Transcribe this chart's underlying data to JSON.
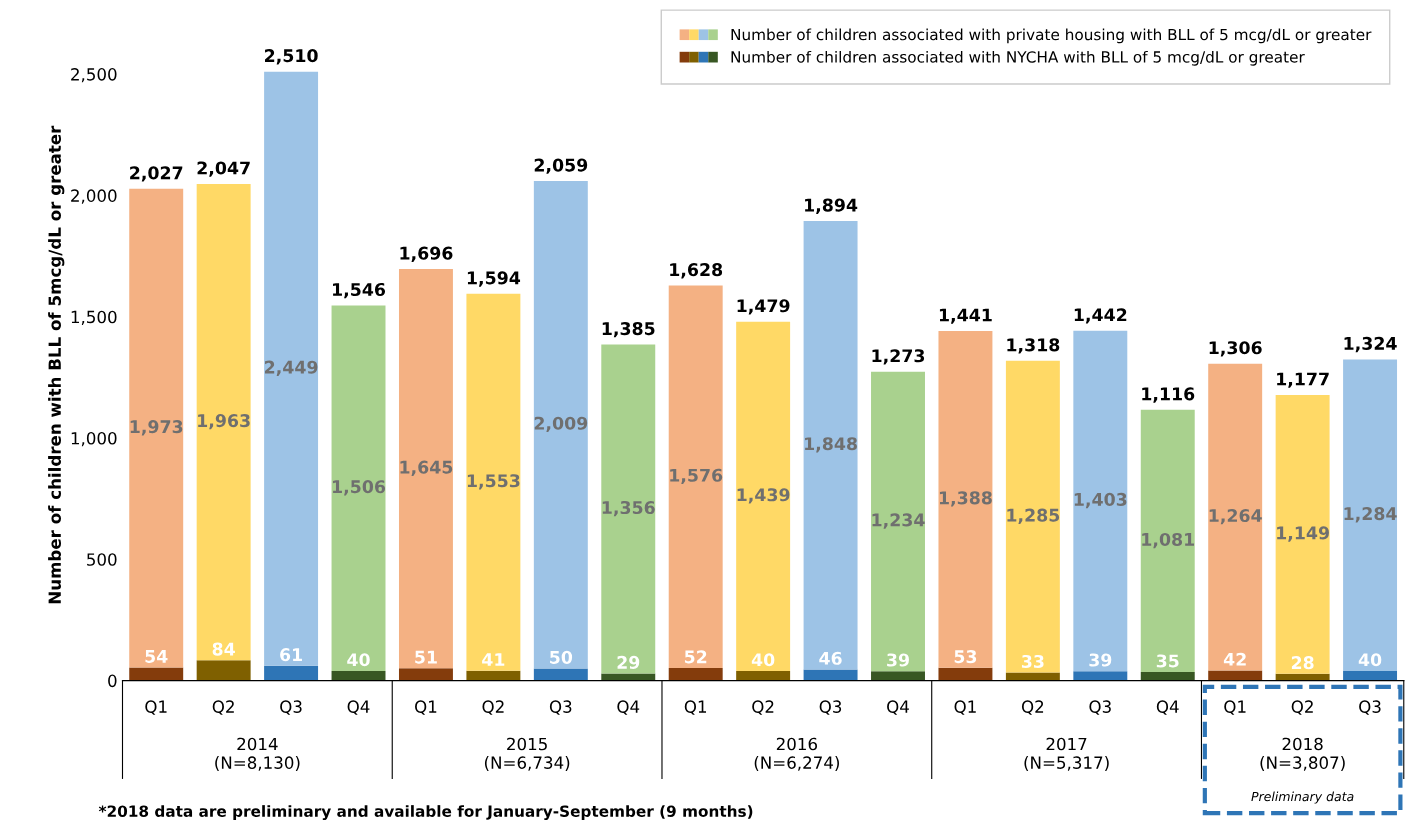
{
  "chart_data": {
    "type": "bar",
    "stacked": true,
    "ylabel": "Number of children with BLL of 5mcg/dL or greater",
    "categories": [
      "Q1",
      "Q2",
      "Q3",
      "Q4",
      "Q1",
      "Q2",
      "Q3",
      "Q4",
      "Q1",
      "Q2",
      "Q3",
      "Q4",
      "Q1",
      "Q2",
      "Q3",
      "Q4",
      "Q1",
      "Q2",
      "Q3"
    ],
    "series": [
      {
        "name": "Number of children associated with NYCHA with BLL of 5 mcg/dL or greater",
        "colors": [
          "#843c0c",
          "#7f6000",
          "#2e75b6",
          "#385723",
          "#843c0c",
          "#7f6000",
          "#2e75b6",
          "#385723",
          "#843c0c",
          "#7f6000",
          "#2e75b6",
          "#385723",
          "#843c0c",
          "#7f6000",
          "#2e75b6",
          "#385723",
          "#843c0c",
          "#7f6000",
          "#2e75b6"
        ],
        "values": [
          54,
          84,
          61,
          40,
          51,
          41,
          50,
          29,
          52,
          40,
          46,
          39,
          53,
          33,
          39,
          35,
          42,
          28,
          40
        ]
      },
      {
        "name": "Number of children associated with private housing with BLL of 5 mcg/dL or greater",
        "colors": [
          "#f4b183",
          "#ffd966",
          "#9dc3e6",
          "#a9d18e",
          "#f4b183",
          "#ffd966",
          "#9dc3e6",
          "#a9d18e",
          "#f4b183",
          "#ffd966",
          "#9dc3e6",
          "#a9d18e",
          "#f4b183",
          "#ffd966",
          "#9dc3e6",
          "#a9d18e",
          "#f4b183",
          "#ffd966",
          "#9dc3e6"
        ],
        "values": [
          1973,
          1963,
          2449,
          1506,
          1645,
          1553,
          2009,
          1356,
          1576,
          1439,
          1848,
          1234,
          1388,
          1285,
          1403,
          1081,
          1264,
          1149,
          1284
        ],
        "value_labels": [
          "1,973",
          "1,963",
          "2,449",
          "1,506",
          "1,645",
          "1,553",
          "2,009",
          "1,356",
          "1,576",
          "1,439",
          "1,848",
          "1,234",
          "1,388",
          "1,285",
          "1,403",
          "1,081",
          "1,264",
          "1,149",
          "1,284"
        ]
      }
    ],
    "totals": [
      "2,027",
      "2,047",
      "2,510",
      "1,546",
      "1,696",
      "1,594",
      "2,059",
      "1,385",
      "1,628",
      "1,479",
      "1,894",
      "1,273",
      "1,441",
      "1,318",
      "1,442",
      "1,116",
      "1,306",
      "1,177",
      "1,324"
    ],
    "data_labels": true,
    "ylim": [
      0,
      2600
    ],
    "yticks": [
      0,
      {
        "value": 500,
        "label": "500"
      },
      {
        "value": 1000,
        "label": "1,000"
      },
      {
        "value": 1500,
        "label": "1,500"
      },
      {
        "value": 2000,
        "label": "2,000"
      },
      {
        "value": 2500,
        "label": "2,500"
      }
    ],
    "legend": "top right",
    "annotations": [
      "2014\n(N=8,130)",
      "2015\n(N=6,734)",
      "2016\n(N=6,274)",
      "2017\n(N=5,317)",
      "2018\n(N=3,807)",
      "Preliminary data",
      "*2018 data are preliminary and available for January-September (9 months)"
    ]
  }
}
